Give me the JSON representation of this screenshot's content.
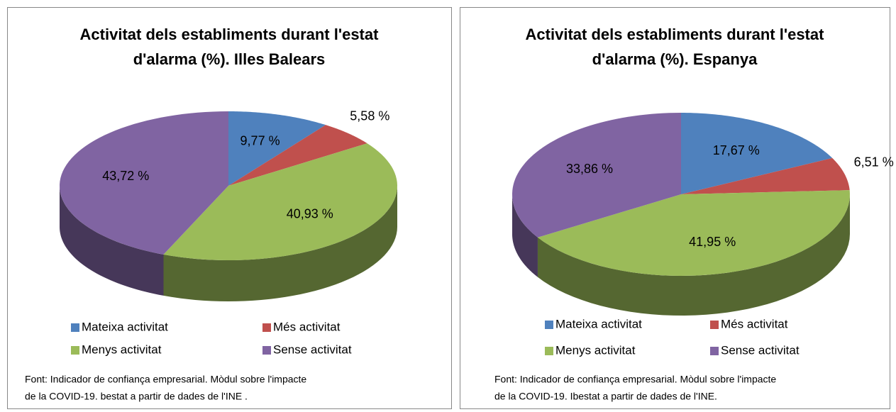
{
  "chart_data": [
    {
      "type": "pie3d",
      "title": [
        "Activitat dels establiments durant l'estat",
        "d'alarma (%). Illes Balears"
      ],
      "categories": [
        "Mateixa activitat",
        "Més activitat",
        "Menys activitat",
        "Sense activitat"
      ],
      "values": [
        9.77,
        5.58,
        40.93,
        43.72
      ],
      "value_labels": [
        "9,77 %",
        "5,58 %",
        "40,93 %",
        "43,72 %"
      ],
      "colors": [
        "#4f81bd",
        "#c0504d",
        "#9bbb59",
        "#8064a2"
      ],
      "source": [
        "Font: Indicador de confiança empresarial. Mòdul sobre l'impacte",
        "de la COVID-19.  bestat a partir de dades de l'INE ."
      ]
    },
    {
      "type": "pie3d",
      "title": [
        "Activitat dels establiments durant l'estat",
        "d'alarma (%). Espanya"
      ],
      "categories": [
        "Mateixa activitat",
        "Més activitat",
        "Menys activitat",
        "Sense activitat"
      ],
      "values": [
        17.67,
        6.51,
        41.95,
        33.86
      ],
      "value_labels": [
        "17,67 %",
        "6,51 %",
        "41,95 %",
        "33,86 %"
      ],
      "colors": [
        "#4f81bd",
        "#c0504d",
        "#9bbb59",
        "#8064a2"
      ],
      "source": [
        "Font: Indicador de confiança empresarial. Mòdul sobre l'impacte",
        " de la COVID-19. Ibestat a partir de dades de l'INE."
      ]
    }
  ]
}
